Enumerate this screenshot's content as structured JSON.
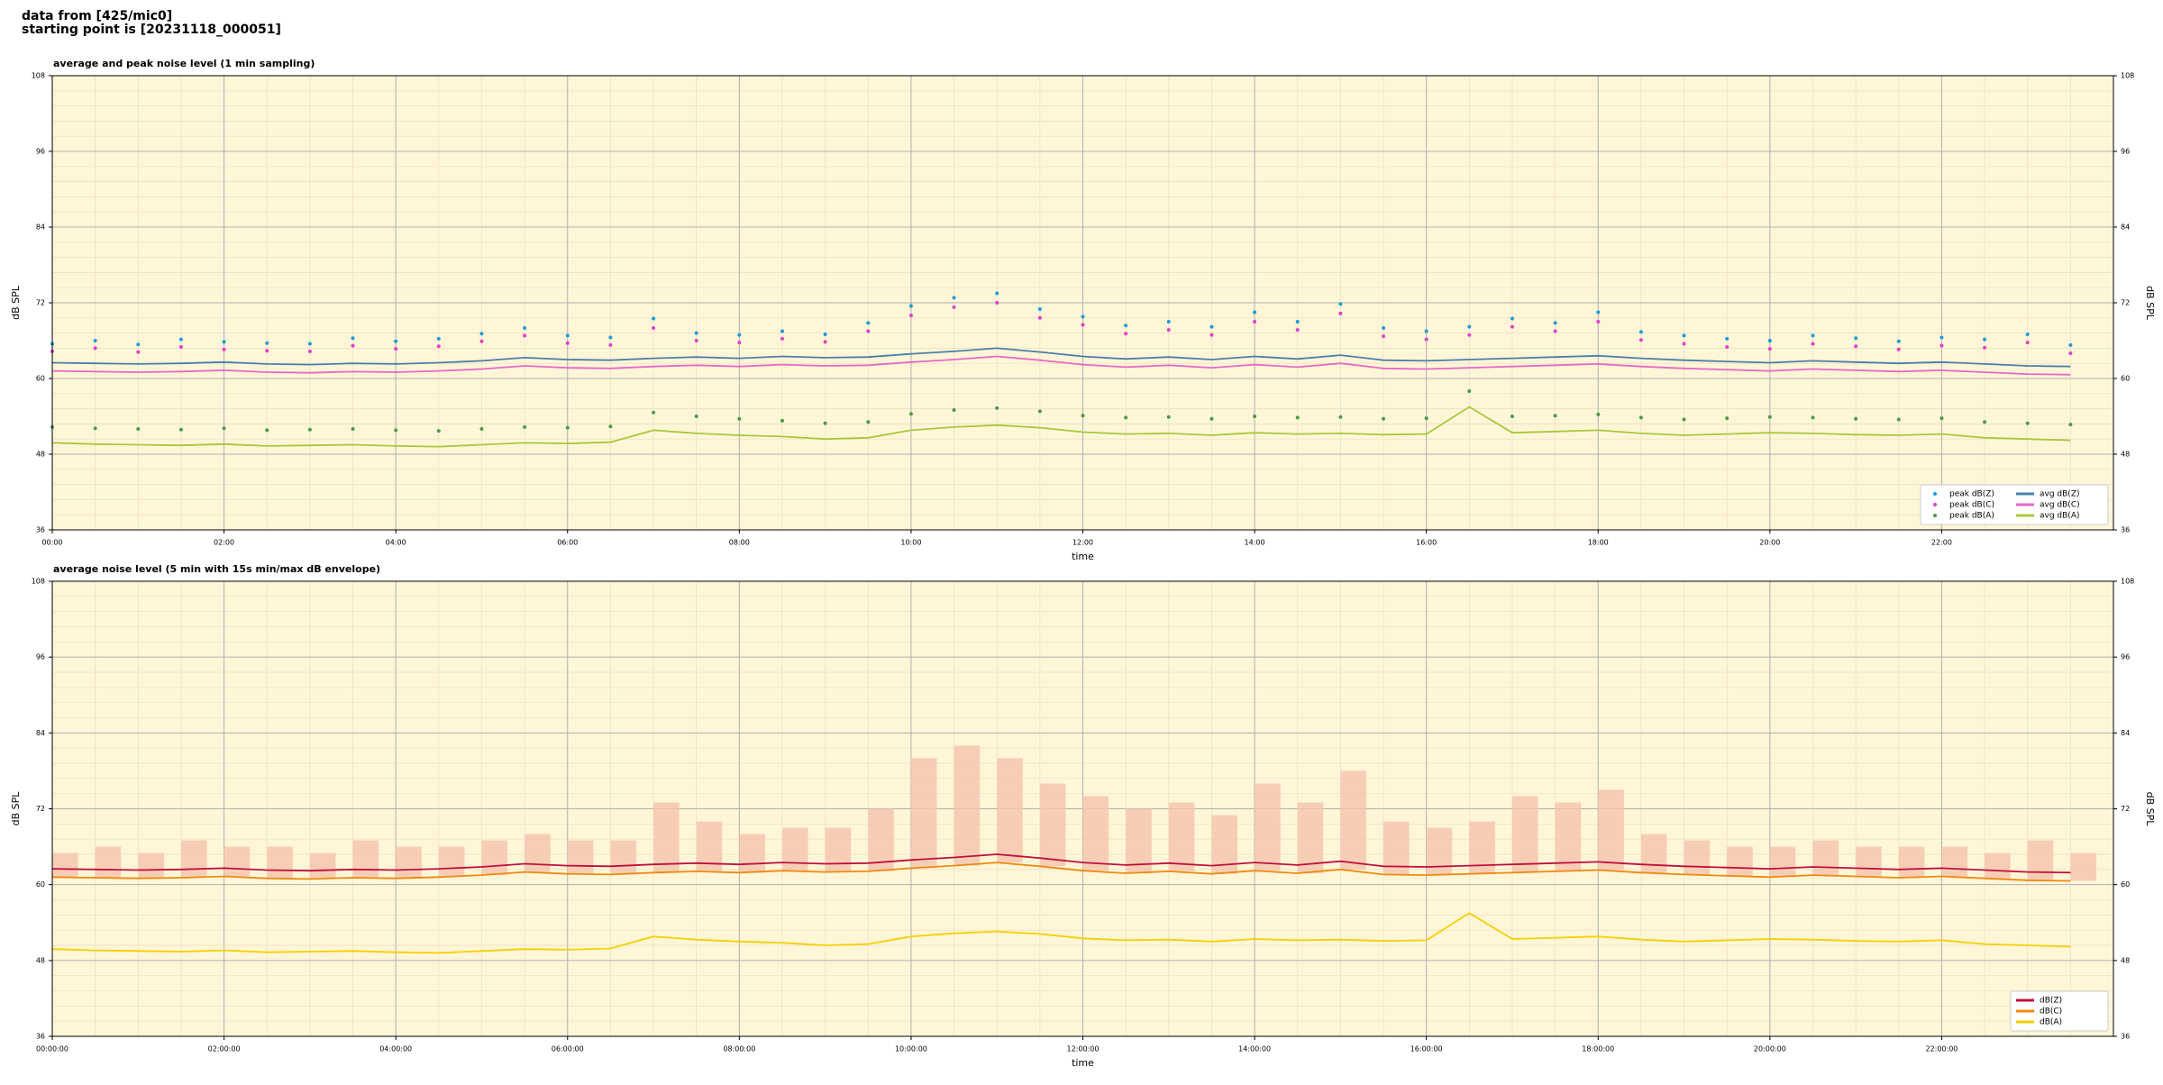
{
  "header": {
    "lines": [
      "data from [425/mic0]",
      "starting point is [20231118_000051]"
    ]
  },
  "chart_data": [
    {
      "type": "line",
      "title": "average and peak noise level (1 min sampling)",
      "x_label": "time",
      "y_label": "dB SPL",
      "x": [
        "00:00",
        "00:30",
        "01:00",
        "01:30",
        "02:00",
        "02:30",
        "03:00",
        "03:30",
        "04:00",
        "04:30",
        "05:00",
        "05:30",
        "06:00",
        "06:30",
        "07:00",
        "07:30",
        "08:00",
        "08:30",
        "09:00",
        "09:30",
        "10:00",
        "10:30",
        "11:00",
        "11:30",
        "12:00",
        "12:30",
        "13:00",
        "13:30",
        "14:00",
        "14:30",
        "15:00",
        "15:30",
        "16:00",
        "16:30",
        "17:00",
        "17:30",
        "18:00",
        "18:30",
        "19:00",
        "19:30",
        "20:00",
        "20:30",
        "21:00",
        "21:30",
        "22:00",
        "22:30",
        "23:00",
        "23:30"
      ],
      "xlim": [
        "00:00",
        "24:00"
      ],
      "xticks": [
        "00:00",
        "02:00",
        "04:00",
        "06:00",
        "08:00",
        "10:00",
        "12:00",
        "14:00",
        "16:00",
        "18:00",
        "20:00",
        "22:00"
      ],
      "ylim": [
        36,
        108
      ],
      "yticks": [
        36,
        48,
        60,
        72,
        84,
        96,
        108
      ],
      "grid": true,
      "legend": "lower right",
      "legend_columns": 2,
      "series": [
        {
          "name": "peak dB(Z)",
          "kind": "scatter",
          "color": "#1f9bd8",
          "values": [
            65.5,
            66,
            65.4,
            66.2,
            65.8,
            65.6,
            65.5,
            66.4,
            65.9,
            66.3,
            67.1,
            68.0,
            66.8,
            66.5,
            69.5,
            67.2,
            66.9,
            67.5,
            67.0,
            68.8,
            71.5,
            72.8,
            73.5,
            71.0,
            69.8,
            68.4,
            69.0,
            68.2,
            70.5,
            69.0,
            71.8,
            68.0,
            67.5,
            68.2,
            69.5,
            68.8,
            70.5,
            67.4,
            66.8,
            66.3,
            66.0,
            66.8,
            66.4,
            65.9,
            66.5,
            66.2,
            67.0,
            65.3
          ]
        },
        {
          "name": "peak dB(C)",
          "kind": "scatter",
          "color": "#e040c8",
          "values": [
            64.3,
            64.8,
            64.2,
            65.0,
            64.6,
            64.4,
            64.3,
            65.2,
            64.7,
            65.1,
            65.9,
            66.8,
            65.6,
            65.3,
            68.0,
            66.0,
            65.7,
            66.3,
            65.8,
            67.5,
            70.0,
            71.3,
            72.0,
            69.6,
            68.5,
            67.1,
            67.7,
            66.9,
            69.0,
            67.7,
            70.3,
            66.7,
            66.2,
            66.9,
            68.2,
            67.5,
            69.0,
            66.1,
            65.5,
            65.0,
            64.7,
            65.5,
            65.1,
            64.6,
            65.2,
            64.9,
            65.7,
            64.0
          ]
        },
        {
          "name": "peak dB(A)",
          "kind": "scatter",
          "color": "#4a9a4a",
          "values": [
            52.3,
            52.1,
            52.0,
            51.9,
            52.1,
            51.8,
            51.9,
            52.0,
            51.8,
            51.7,
            52.0,
            52.3,
            52.2,
            52.4,
            54.6,
            54.0,
            53.6,
            53.3,
            52.9,
            53.1,
            54.4,
            55.0,
            55.3,
            54.8,
            54.1,
            53.8,
            53.9,
            53.6,
            54.0,
            53.8,
            53.9,
            53.6,
            53.7,
            58.0,
            54.0,
            54.1,
            54.3,
            53.8,
            53.5,
            53.7,
            53.9,
            53.8,
            53.6,
            53.5,
            53.7,
            53.1,
            52.9,
            52.7
          ]
        },
        {
          "name": "avg dB(Z)",
          "kind": "line",
          "color": "#4a7fa8",
          "values": [
            62.5,
            62.4,
            62.3,
            62.4,
            62.6,
            62.3,
            62.2,
            62.4,
            62.3,
            62.5,
            62.8,
            63.3,
            63.0,
            62.9,
            63.2,
            63.4,
            63.2,
            63.5,
            63.3,
            63.4,
            63.9,
            64.3,
            64.8,
            64.2,
            63.5,
            63.1,
            63.4,
            63.0,
            63.5,
            63.1,
            63.7,
            62.9,
            62.8,
            63.0,
            63.2,
            63.4,
            63.6,
            63.2,
            62.9,
            62.7,
            62.5,
            62.8,
            62.6,
            62.4,
            62.6,
            62.3,
            62.0,
            61.9
          ]
        },
        {
          "name": "avg dB(C)",
          "kind": "line",
          "color": "#e868c8",
          "values": [
            61.2,
            61.1,
            61.0,
            61.1,
            61.3,
            61.0,
            60.9,
            61.1,
            61.0,
            61.2,
            61.5,
            62.0,
            61.7,
            61.6,
            61.9,
            62.1,
            61.9,
            62.2,
            62.0,
            62.1,
            62.6,
            63.0,
            63.5,
            62.9,
            62.2,
            61.8,
            62.1,
            61.7,
            62.2,
            61.8,
            62.4,
            61.6,
            61.5,
            61.7,
            61.9,
            62.1,
            62.3,
            61.9,
            61.6,
            61.4,
            61.2,
            61.5,
            61.3,
            61.1,
            61.3,
            61.0,
            60.7,
            60.6
          ]
        },
        {
          "name": "avg dB(A)",
          "kind": "line",
          "color": "#a8c83a",
          "values": [
            49.8,
            49.6,
            49.5,
            49.4,
            49.6,
            49.3,
            49.4,
            49.5,
            49.3,
            49.2,
            49.5,
            49.8,
            49.7,
            49.9,
            51.8,
            51.3,
            51.0,
            50.8,
            50.4,
            50.6,
            51.8,
            52.3,
            52.6,
            52.2,
            51.5,
            51.2,
            51.3,
            51.0,
            51.4,
            51.2,
            51.3,
            51.1,
            51.2,
            55.5,
            51.4,
            51.6,
            51.8,
            51.3,
            51.0,
            51.2,
            51.4,
            51.3,
            51.1,
            51.0,
            51.2,
            50.6,
            50.4,
            50.2
          ]
        }
      ]
    },
    {
      "type": "line",
      "title": "average noise level (5 min with 15s min/max dB envelope)",
      "x_label": "time",
      "y_label": "dB SPL",
      "x": [
        "00:00:00",
        "00:30:00",
        "01:00:00",
        "01:30:00",
        "02:00:00",
        "02:30:00",
        "03:00:00",
        "03:30:00",
        "04:00:00",
        "04:30:00",
        "05:00:00",
        "05:30:00",
        "06:00:00",
        "06:30:00",
        "07:00:00",
        "07:30:00",
        "08:00:00",
        "08:30:00",
        "09:00:00",
        "09:30:00",
        "10:00:00",
        "10:30:00",
        "11:00:00",
        "11:30:00",
        "12:00:00",
        "12:30:00",
        "13:00:00",
        "13:30:00",
        "14:00:00",
        "14:30:00",
        "15:00:00",
        "15:30:00",
        "16:00:00",
        "16:30:00",
        "17:00:00",
        "17:30:00",
        "18:00:00",
        "18:30:00",
        "19:00:00",
        "19:30:00",
        "20:00:00",
        "20:30:00",
        "21:00:00",
        "21:30:00",
        "22:00:00",
        "22:30:00",
        "23:00:00",
        "23:30:00"
      ],
      "xlim": [
        "00:00:00",
        "24:00:00"
      ],
      "xticks": [
        "00:00:00",
        "02:00:00",
        "04:00:00",
        "06:00:00",
        "08:00:00",
        "10:00:00",
        "12:00:00",
        "14:00:00",
        "16:00:00",
        "18:00:00",
        "20:00:00",
        "22:00:00"
      ],
      "ylim": [
        36,
        108
      ],
      "yticks": [
        36,
        48,
        60,
        72,
        84,
        96,
        108
      ],
      "grid": true,
      "legend": "lower right",
      "legend_columns": 1,
      "envelope": {
        "color": "#f5c4ac",
        "values": [
          65,
          66,
          65,
          67,
          66,
          66,
          65,
          67,
          66,
          66,
          67,
          68,
          67,
          67,
          73,
          70,
          68,
          69,
          69,
          72,
          80,
          82,
          80,
          76,
          74,
          72,
          73,
          71,
          76,
          73,
          78,
          70,
          69,
          70,
          74,
          73,
          75,
          68,
          67,
          66,
          66,
          67,
          66,
          66,
          66,
          65,
          67,
          65
        ]
      },
      "series": [
        {
          "name": "dB(Z)",
          "kind": "line",
          "color": "#c0103a",
          "values": [
            62.5,
            62.4,
            62.3,
            62.4,
            62.6,
            62.3,
            62.2,
            62.4,
            62.3,
            62.5,
            62.8,
            63.3,
            63.0,
            62.9,
            63.2,
            63.4,
            63.2,
            63.5,
            63.3,
            63.4,
            63.9,
            64.3,
            64.8,
            64.2,
            63.5,
            63.1,
            63.4,
            63.0,
            63.5,
            63.1,
            63.7,
            62.9,
            62.8,
            63.0,
            63.2,
            63.4,
            63.6,
            63.2,
            62.9,
            62.7,
            62.5,
            62.8,
            62.6,
            62.4,
            62.6,
            62.3,
            62.0,
            61.9
          ]
        },
        {
          "name": "dB(C)",
          "kind": "line",
          "color": "#f08a10",
          "values": [
            61.2,
            61.1,
            61.0,
            61.1,
            61.3,
            61.0,
            60.9,
            61.1,
            61.0,
            61.2,
            61.5,
            62.0,
            61.7,
            61.6,
            61.9,
            62.1,
            61.9,
            62.2,
            62.0,
            62.1,
            62.6,
            63.0,
            63.5,
            62.9,
            62.2,
            61.8,
            62.1,
            61.7,
            62.2,
            61.8,
            62.4,
            61.6,
            61.5,
            61.7,
            61.9,
            62.1,
            62.3,
            61.9,
            61.6,
            61.4,
            61.2,
            61.5,
            61.3,
            61.1,
            61.3,
            61.0,
            60.7,
            60.6
          ]
        },
        {
          "name": "dB(A)",
          "kind": "line",
          "color": "#f5d000",
          "values": [
            49.8,
            49.6,
            49.5,
            49.4,
            49.6,
            49.3,
            49.4,
            49.5,
            49.3,
            49.2,
            49.5,
            49.8,
            49.7,
            49.9,
            51.8,
            51.3,
            51.0,
            50.8,
            50.4,
            50.6,
            51.8,
            52.3,
            52.6,
            52.2,
            51.5,
            51.2,
            51.3,
            51.0,
            51.4,
            51.2,
            51.3,
            51.1,
            51.2,
            55.5,
            51.4,
            51.6,
            51.8,
            51.3,
            51.0,
            51.2,
            51.4,
            51.3,
            51.1,
            51.0,
            51.2,
            50.6,
            50.4,
            50.2
          ]
        }
      ]
    }
  ]
}
